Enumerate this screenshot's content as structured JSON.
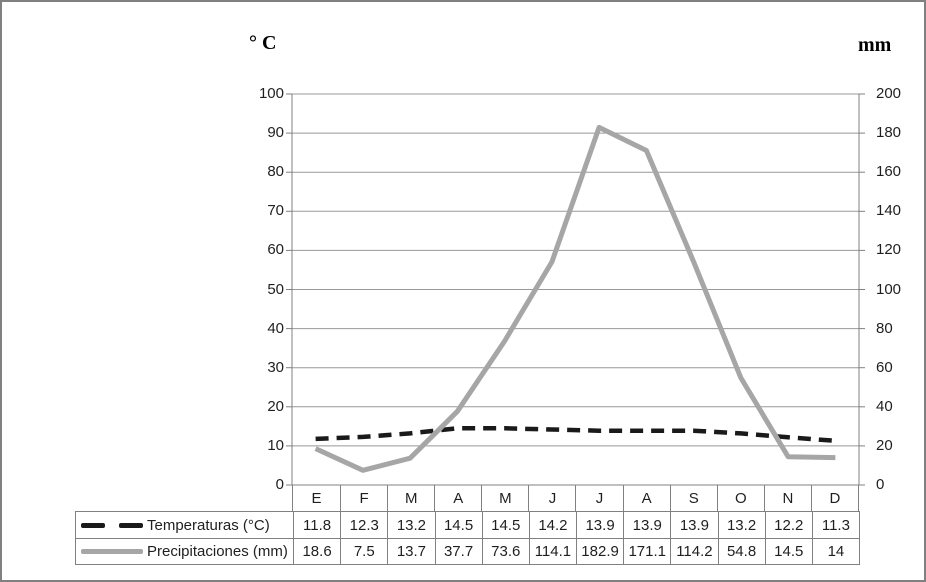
{
  "chart_data": {
    "type": "line",
    "categories": [
      "E",
      "F",
      "M",
      "A",
      "M",
      "J",
      "J",
      "A",
      "S",
      "O",
      "N",
      "D"
    ],
    "series": [
      {
        "name": "Temperaturas (°C)",
        "yaxis": "left",
        "line_style": "dashed",
        "color": "#1a1a1a",
        "values": [
          11.8,
          12.3,
          13.2,
          14.5,
          14.5,
          14.2,
          13.9,
          13.9,
          13.9,
          13.2,
          12.2,
          11.3
        ]
      },
      {
        "name": "Precipitaciones (mm)",
        "yaxis": "right",
        "line_style": "solid",
        "color": "#a6a6a6",
        "values": [
          18.6,
          7.5,
          13.7,
          37.7,
          73.6,
          114.1,
          182.9,
          171.1,
          114.2,
          54.8,
          14.5,
          14
        ]
      }
    ],
    "left_axis": {
      "title": "° C",
      "min": 0,
      "max": 100,
      "step": 10,
      "tick_labels": [
        "100",
        "90",
        "80",
        "70",
        "60",
        "50",
        "40",
        "30",
        "20",
        "10",
        "0"
      ]
    },
    "right_axis": {
      "title": "mm",
      "min": 0,
      "max": 200,
      "step": 20,
      "tick_labels": [
        "200",
        "180",
        "160",
        "140",
        "120",
        "100",
        "80",
        "60",
        "40",
        "20",
        "0"
      ]
    },
    "grid": "horizontal",
    "legend_position": "table-left",
    "colors": {
      "axis": "#808080",
      "gridline": "#989898",
      "frame": "#808080"
    }
  },
  "table": {
    "rows": [
      {
        "label": "Temperaturas (°C)",
        "display_values": [
          "11.8",
          "12.3",
          "13.2",
          "14.5",
          "14.5",
          "14.2",
          "13.9",
          "13.9",
          "13.9",
          "13.2",
          "12.2",
          "11.3"
        ]
      },
      {
        "label": "Precipitaciones (mm)",
        "display_values": [
          "18.6",
          "7.5",
          "13.7",
          "37.7",
          "73.6",
          "114.1",
          "182.9",
          "171.1",
          "114.2",
          "54.8",
          "14.5",
          "14"
        ]
      }
    ]
  }
}
